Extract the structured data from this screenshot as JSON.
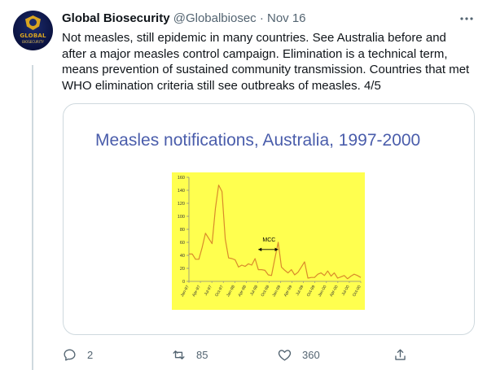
{
  "tweet": {
    "avatar_text": "GLOBAL",
    "avatar_subtext": "BIOSECURITY",
    "display_name": "Global Biosecurity",
    "handle_time": " @Globalbiosec · Nov 16",
    "text": "Not measles, still epidemic in many countries. See Australia before and after a major measles control campaign. Elimination is a technical term, means prevention of sustained community transmission. Countries that met WHO elimination criteria still see outbreaks of measles. 4/5"
  },
  "slide": {
    "title": "Measles notifications, Australia, 1997-2000",
    "annotation": "MCC"
  },
  "chart_data": {
    "type": "line",
    "title": "Measles notifications, Australia, 1997-2000",
    "ylim": [
      0,
      160
    ],
    "yticks": [
      0,
      20,
      40,
      60,
      80,
      100,
      120,
      140,
      160
    ],
    "xtick_labels": [
      "Jan-97",
      "Apr-97",
      "Jul-97",
      "Oct-97",
      "Jan-98",
      "Apr-98",
      "Jul-98",
      "Oct-98",
      "Jan-99",
      "Apr-99",
      "Jul-99",
      "Oct-99",
      "Jan-00",
      "Apr-00",
      "Jul-00",
      "Oct-00"
    ],
    "values": [
      42,
      42,
      34,
      34,
      52,
      74,
      66,
      58,
      112,
      148,
      138,
      65,
      36,
      35,
      33,
      22,
      25,
      23,
      27,
      25,
      35,
      18,
      18,
      17,
      10,
      9,
      35,
      60,
      22,
      17,
      13,
      18,
      10,
      14,
      22,
      30,
      5,
      6,
      6,
      11,
      13,
      9,
      16,
      8,
      13,
      5,
      7,
      9,
      4,
      8,
      11,
      9,
      6
    ],
    "annotations": [
      {
        "text": "MCC",
        "type": "double-arrow"
      }
    ],
    "colors": {
      "background": "#ffff4f",
      "line": "#d98a2b",
      "axis": "#888888"
    },
    "grid": false
  },
  "actions": {
    "reply_count": "2",
    "retweet_count": "85",
    "like_count": "360"
  }
}
